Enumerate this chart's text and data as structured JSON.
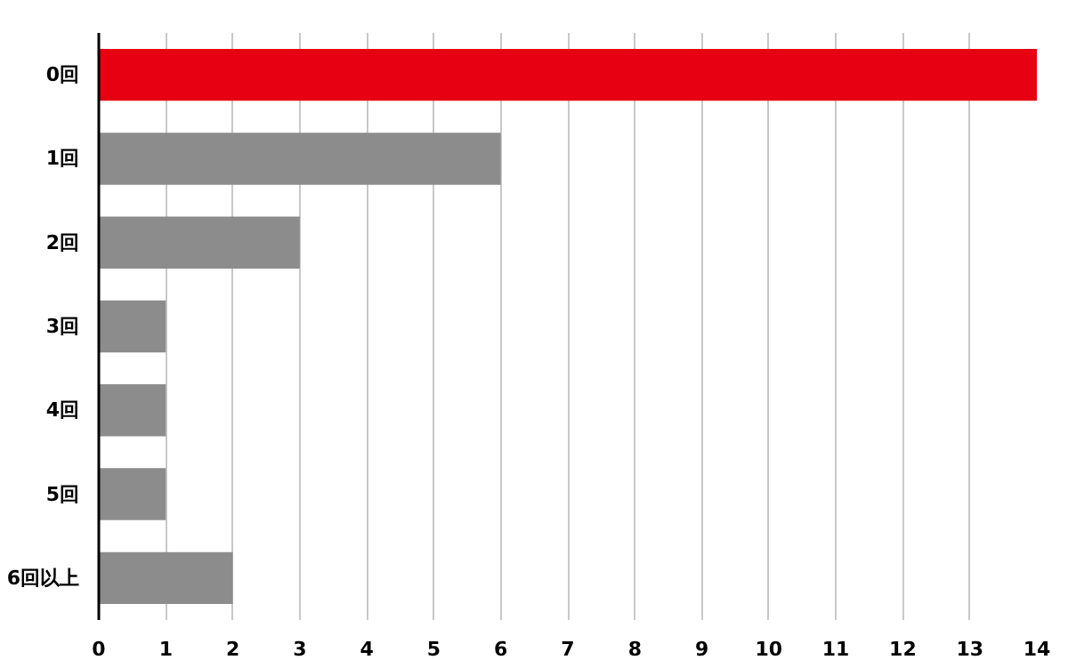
{
  "chart_data": {
    "type": "bar",
    "orientation": "horizontal",
    "categories": [
      "0回",
      "1回",
      "2回",
      "3回",
      "4回",
      "5回",
      "6回以上"
    ],
    "values": [
      14,
      6,
      3,
      1,
      1,
      1,
      2
    ],
    "colors": [
      "#e60012",
      "#8c8c8c",
      "#8c8c8c",
      "#8c8c8c",
      "#8c8c8c",
      "#8c8c8c",
      "#8c8c8c"
    ],
    "xlim": [
      0,
      14
    ],
    "xticks": [
      0,
      1,
      2,
      3,
      4,
      5,
      6,
      7,
      8,
      9,
      10,
      11,
      12,
      13,
      14
    ],
    "grid": "x"
  }
}
